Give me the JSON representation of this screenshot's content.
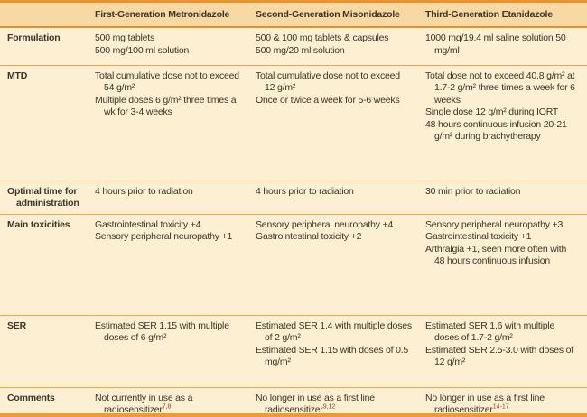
{
  "colors": {
    "page_background": "#fcefd2",
    "header_background": "#f8d9a4",
    "top_border": "#e8922e",
    "bottom_border": "#ec9c33",
    "row_separator": "#eaa848",
    "text": "#3b352b"
  },
  "table": {
    "columns": [
      "",
      "First-Generation Metronidazole",
      "Second-Generation Misonidazole",
      "Third-Generation Etanidazole"
    ],
    "rows": [
      {
        "label": "Formulation",
        "cells": [
          [
            {
              "text": "500 mg tablets"
            },
            {
              "text": "500 mg/100 ml solution"
            }
          ],
          [
            {
              "text": "500 & 100 mg tablets & capsules"
            },
            {
              "text": "500 mg/20 ml solution"
            }
          ],
          [
            {
              "text": "1000 mg/19.4 ml saline solution 50 mg/ml"
            }
          ]
        ]
      },
      {
        "label": "MTD",
        "cells": [
          [
            {
              "text": "Total cumulative dose not to exceed 54 g/m²"
            },
            {
              "text": "Multiple doses 6 g/m² three times a wk for 3-4 weeks"
            }
          ],
          [
            {
              "text": "Total cumulative dose not to exceed 12 g/m²"
            },
            {
              "text": "Once or twice a week for 5-6 weeks"
            }
          ],
          [
            {
              "text": "Total dose not to exceed 40.8 g/m² at 1.7-2 g/m² three times a week for 6 weeks"
            },
            {
              "text": "Single dose 12 g/m² during IORT"
            },
            {
              "text": "48 hours continuous infusion 20-21 g/m² during brachytherapy"
            }
          ]
        ]
      },
      {
        "label": "Optimal time for administration",
        "cells": [
          [
            {
              "text": "4 hours prior to radiation"
            }
          ],
          [
            {
              "text": "4 hours prior to radiation"
            }
          ],
          [
            {
              "text": "30 min prior to radiation"
            }
          ]
        ]
      },
      {
        "label": "Main toxicities",
        "cells": [
          [
            {
              "text": "Gastrointestinal toxicity +4"
            },
            {
              "text": "Sensory peripheral neuropathy +1"
            }
          ],
          [
            {
              "text": "Sensory peripheral neuropathy +4"
            },
            {
              "text": "Gastrointestinal toxicity +2"
            }
          ],
          [
            {
              "text": "Sensory peripheral neuropathy +3"
            },
            {
              "text": "Gastrointestinal toxicity +1"
            },
            {
              "text": "Arthralgia +1, seen more often with 48 hours continuous infusion"
            }
          ]
        ]
      },
      {
        "label": "SER",
        "cells": [
          [
            {
              "text": "Estimated SER 1.15 with multiple doses of 6 g/m²"
            }
          ],
          [
            {
              "text": "Estimated SER 1.4 with multiple doses of 2 g/m²"
            },
            {
              "text": "Estimated SER 1.15 with doses of 0.5 mg/m²"
            }
          ],
          [
            {
              "text": "Estimated SER 1.6 with multiple doses of 1.7-2 g/m²"
            },
            {
              "text": "Estimated SER 2.5-3.0 with doses of 12 g/m²"
            }
          ]
        ]
      },
      {
        "label": "Comments",
        "cells": [
          [
            {
              "text": "Not currently in use as a radiosensitizer",
              "sup": "7,8"
            }
          ],
          [
            {
              "text": "No longer in use as a first line radiosensitizer",
              "sup": "9,12"
            }
          ],
          [
            {
              "text": "No longer in use as a first line radiosensitizer",
              "sup": "14-17"
            }
          ]
        ]
      }
    ]
  }
}
